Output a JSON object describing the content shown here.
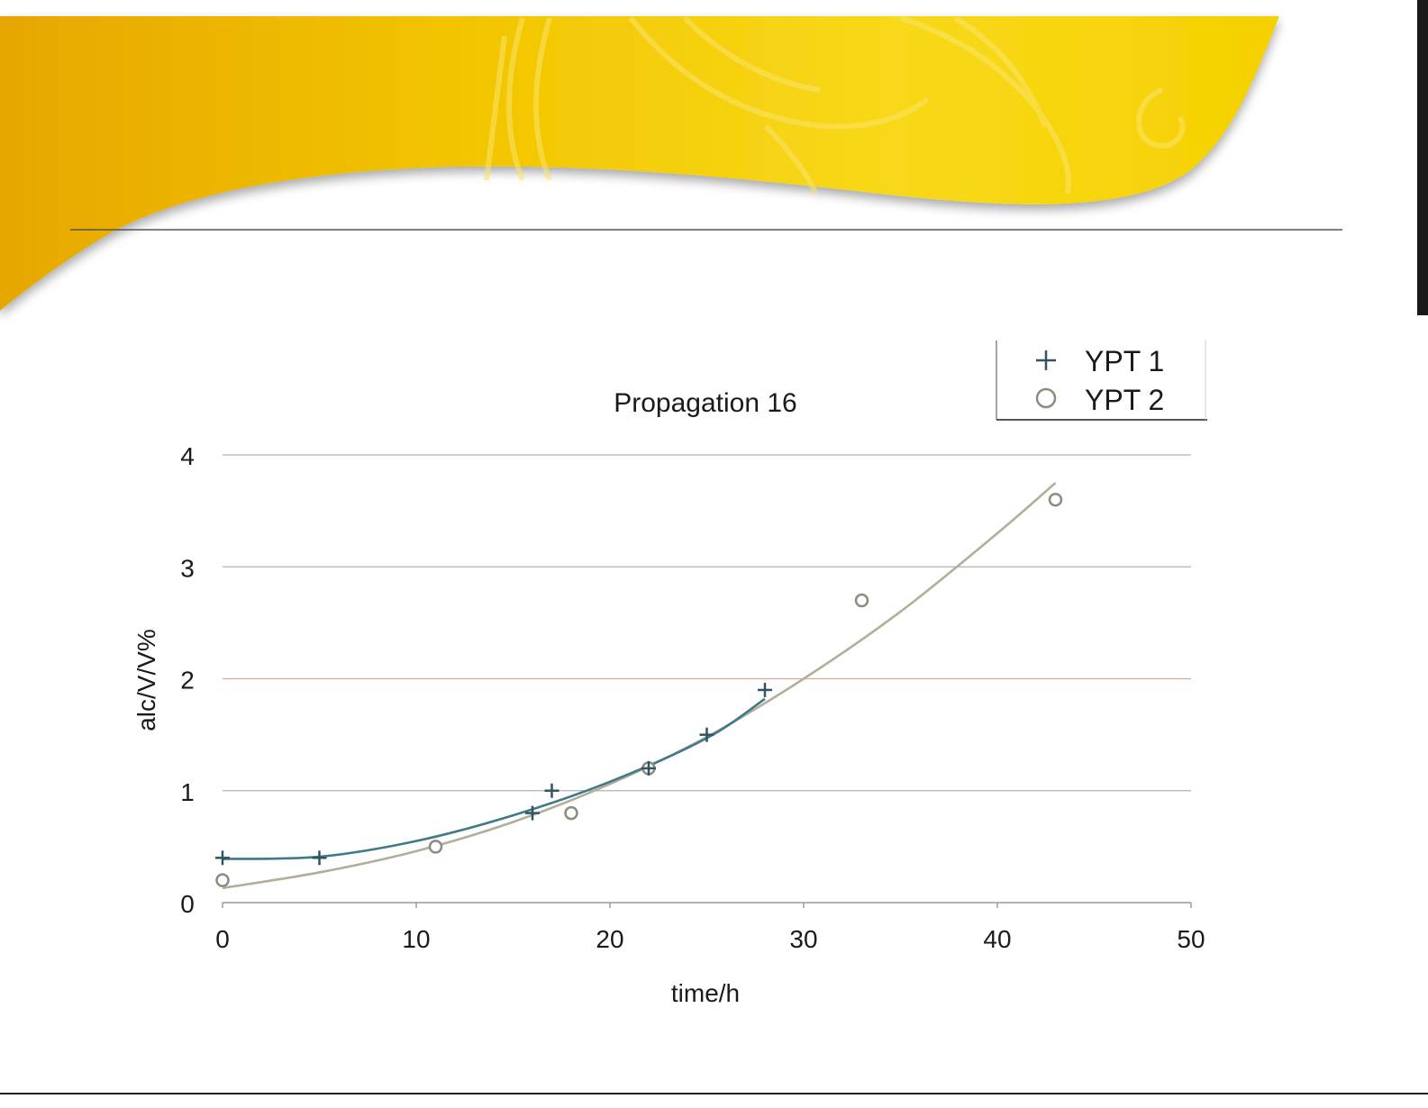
{
  "legend": {
    "items": [
      {
        "label": "YPT 1",
        "marker": "plus",
        "color": "#2f5560"
      },
      {
        "label": "YPT 2",
        "marker": "circle",
        "color": "#8c8c80"
      }
    ]
  },
  "colors": {
    "banner_light": "#f6d410",
    "banner_dark": "#e8ae00",
    "ypt1_curve": "#3f7a86",
    "ypt2_curve": "#b3ae9a",
    "grid": "#b0b0b0",
    "grid_highlight": "#d8a8a0"
  },
  "chart_data": {
    "type": "scatter",
    "title": "Propagation 16",
    "xlabel": "time/h",
    "ylabel": "alc/V/V%",
    "xlim": [
      0,
      50
    ],
    "ylim": [
      0,
      4
    ],
    "xticks": [
      "0",
      "10",
      "20",
      "30",
      "40",
      "50"
    ],
    "yticks": [
      "0",
      "1",
      "2",
      "3",
      "4"
    ],
    "grid": "horizontal",
    "legend_position": "top-right",
    "series": [
      {
        "name": "YPT 1",
        "marker": "plus",
        "points": [
          [
            0,
            0.4
          ],
          [
            5,
            0.4
          ],
          [
            16,
            0.8
          ],
          [
            17,
            1.0
          ],
          [
            22,
            1.2
          ],
          [
            25,
            1.5
          ],
          [
            28,
            1.9
          ]
        ],
        "trendline": [
          [
            0,
            0.39
          ],
          [
            5,
            0.41
          ],
          [
            10,
            0.55
          ],
          [
            15,
            0.78
          ],
          [
            20,
            1.08
          ],
          [
            25,
            1.47
          ],
          [
            28,
            1.82
          ]
        ]
      },
      {
        "name": "YPT 2",
        "marker": "circle",
        "points": [
          [
            0,
            0.2
          ],
          [
            11,
            0.5
          ],
          [
            18,
            0.8
          ],
          [
            22,
            1.2
          ],
          [
            33,
            2.7
          ],
          [
            43,
            3.6
          ]
        ],
        "trendline": [
          [
            0,
            0.13
          ],
          [
            5,
            0.27
          ],
          [
            10,
            0.46
          ],
          [
            15,
            0.72
          ],
          [
            20,
            1.06
          ],
          [
            25,
            1.48
          ],
          [
            30,
            2.0
          ],
          [
            35,
            2.6
          ],
          [
            40,
            3.3
          ],
          [
            43,
            3.75
          ]
        ]
      }
    ]
  }
}
